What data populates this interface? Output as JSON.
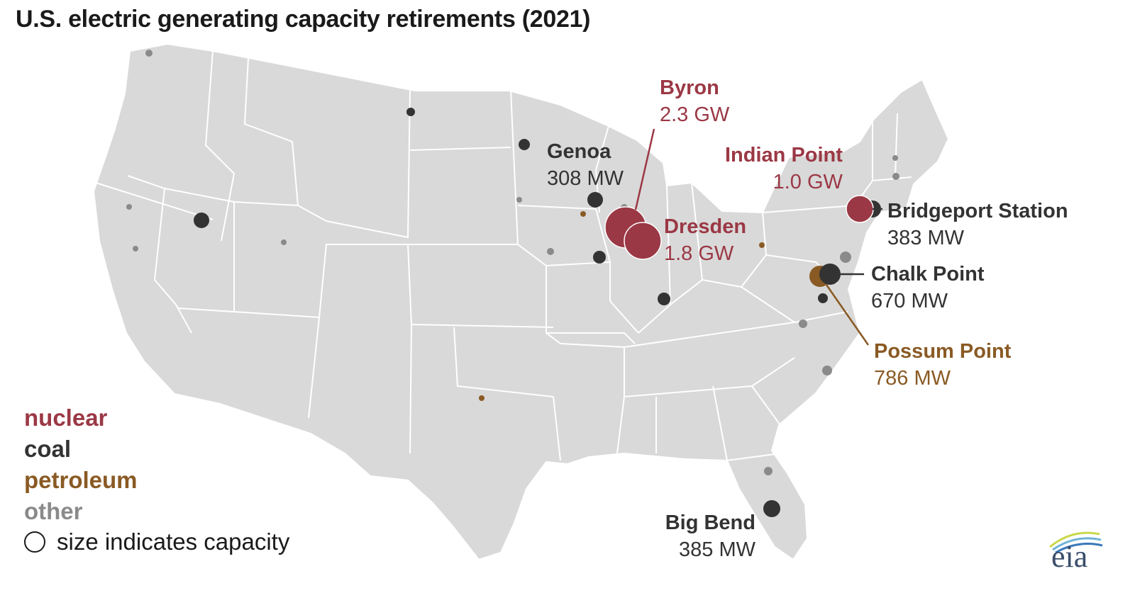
{
  "title": "U.S. electric generating capacity retirements (2021)",
  "colors": {
    "nuclear": "#9b3845",
    "coal": "#333333",
    "petroleum": "#8a5a24",
    "other": "#8a8a8a",
    "land": "#d9d9d9",
    "borders": "#ffffff"
  },
  "legend": {
    "nuclear": "nuclear",
    "coal": "coal",
    "petroleum": "petroleum",
    "other": "other",
    "size_note": "size indicates capacity"
  },
  "labels": {
    "byron": {
      "name": "Byron",
      "capacity": "2.3 GW",
      "type": "nuclear"
    },
    "dresden": {
      "name": "Dresden",
      "capacity": "1.8 GW",
      "type": "nuclear"
    },
    "indian_point": {
      "name": "Indian Point",
      "capacity": "1.0 GW",
      "type": "nuclear"
    },
    "genoa": {
      "name": "Genoa",
      "capacity": "308 MW",
      "type": "coal"
    },
    "bridgeport": {
      "name": "Bridgeport Station",
      "capacity": "383 MW",
      "type": "coal"
    },
    "chalk_point": {
      "name": "Chalk Point",
      "capacity": "670 MW",
      "type": "coal"
    },
    "possum_point": {
      "name": "Possum Point",
      "capacity": "786 MW",
      "type": "petroleum"
    },
    "big_bend": {
      "name": "Big Bend",
      "capacity": "385 MW",
      "type": "coal"
    }
  },
  "logo": {
    "text": "eia",
    "icon": "eia-logo-arcs"
  }
}
